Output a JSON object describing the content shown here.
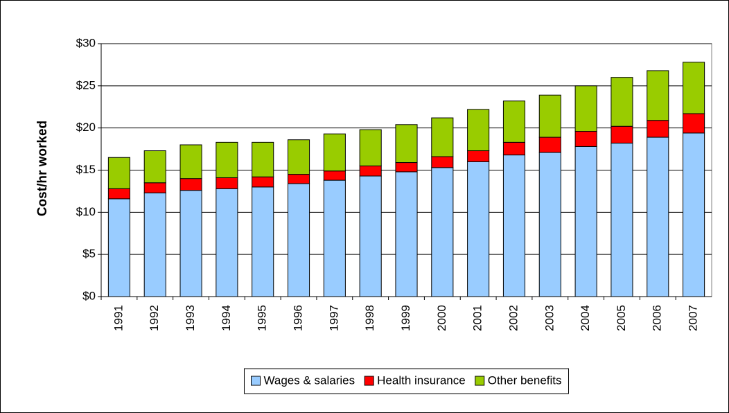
{
  "chart_data": {
    "type": "stacked-bar",
    "y_label": "Cost/hr worked",
    "categories": [
      "1991",
      "1992",
      "1993",
      "1994",
      "1995",
      "1996",
      "1997",
      "1998",
      "1999",
      "2000",
      "2001",
      "2002",
      "2003",
      "2004",
      "2005",
      "2006",
      "2007"
    ],
    "series": [
      {
        "name": "Wages & salaries",
        "color": "#99ccff",
        "values": [
          11.6,
          12.3,
          12.6,
          12.8,
          13.0,
          13.4,
          13.8,
          14.3,
          14.8,
          15.3,
          16.0,
          16.8,
          17.1,
          17.8,
          18.2,
          18.9,
          19.4
        ]
      },
      {
        "name": "Health insurance",
        "color": "#ff0000",
        "values": [
          1.2,
          1.2,
          1.4,
          1.3,
          1.2,
          1.1,
          1.1,
          1.2,
          1.1,
          1.3,
          1.3,
          1.5,
          1.8,
          1.8,
          2.0,
          2.0,
          2.3
        ]
      },
      {
        "name": "Other benefits",
        "color": "#99cc00",
        "values": [
          3.7,
          3.8,
          4.0,
          4.2,
          4.1,
          4.1,
          4.4,
          4.3,
          4.5,
          4.6,
          4.9,
          4.9,
          5.0,
          5.4,
          5.8,
          5.9,
          6.1
        ]
      }
    ],
    "ylim": [
      0,
      30
    ],
    "yticks": [
      {
        "value": 0,
        "label": "$0"
      },
      {
        "value": 5,
        "label": "$5"
      },
      {
        "value": 10,
        "label": "$10"
      },
      {
        "value": 15,
        "label": "$15"
      },
      {
        "value": 20,
        "label": "$20"
      },
      {
        "value": 25,
        "label": "$25"
      },
      {
        "value": 30,
        "label": "$30"
      }
    ],
    "grid": true,
    "legend": "bottom"
  }
}
